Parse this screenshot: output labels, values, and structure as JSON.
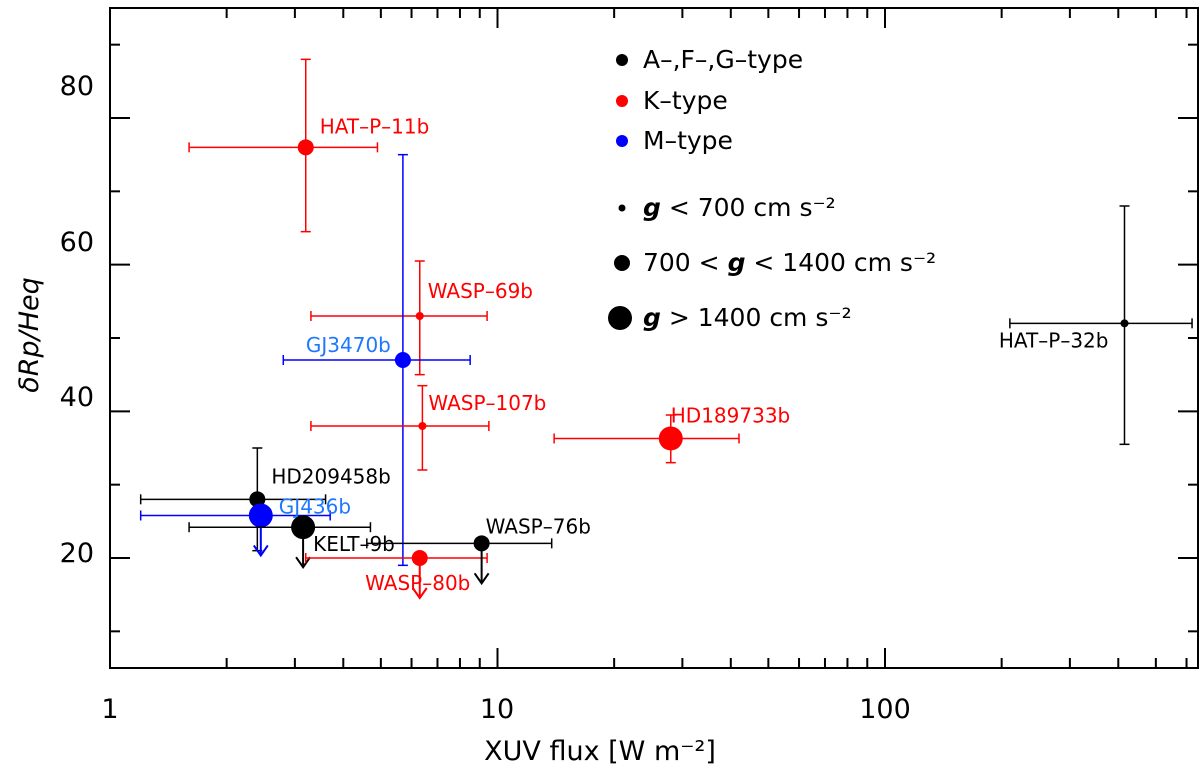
{
  "chart_data": {
    "type": "scatter",
    "xscale": "log",
    "xlim": [
      1,
      600
    ],
    "ylim": [
      5,
      95
    ],
    "xlabel": "XUV flux [W m⁻²]",
    "ylabel": "δRp/Heq",
    "x_ticks": [
      1,
      10,
      100
    ],
    "x_tick_labels": [
      "1",
      "10",
      "100"
    ],
    "y_ticks": [
      20,
      40,
      60,
      80
    ],
    "y_tick_labels": [
      "20",
      "40",
      "60",
      "80"
    ],
    "colors": {
      "AFG": "#000000",
      "K": "#ff0000",
      "M": "#0000ff",
      "M_label": "#1e78ff"
    },
    "legend_types": [
      {
        "label": "A–,F–,G–type",
        "color": "#000000"
      },
      {
        "label": "K–type",
        "color": "#ff0000"
      },
      {
        "label": "M–type",
        "color": "#0000ff"
      }
    ],
    "legend_gravity": [
      {
        "size": "small",
        "pre": "g",
        "text": " < 700 cm s⁻²"
      },
      {
        "size": "medium",
        "pre": "700 < ",
        "g": "g",
        "text": " < 1400 cm s⁻²"
      },
      {
        "size": "large",
        "pre": "g",
        "text": " > 1400 cm s⁻²"
      }
    ],
    "points": [
      {
        "name": "HAT-P-11b",
        "label": "HAT–P–11b",
        "type": "K",
        "x": 3.2,
        "y": 76,
        "x_lo": 1.6,
        "x_hi": 4.9,
        "y_lo": 64.5,
        "y_hi": 88,
        "gclass": "medium",
        "upper_limit": false
      },
      {
        "name": "WASP-69b",
        "label": "WASP–69b",
        "type": "K",
        "x": 6.3,
        "y": 53,
        "x_lo": 3.3,
        "x_hi": 9.4,
        "y_lo": 45,
        "y_hi": 60.5,
        "gclass": "small",
        "upper_limit": false
      },
      {
        "name": "GJ3470b",
        "label": "GJ3470b",
        "type": "M",
        "x": 5.7,
        "y": 47,
        "x_lo": 2.8,
        "x_hi": 8.5,
        "y_lo": 19,
        "y_hi": 75,
        "gclass": "medium",
        "upper_limit": false
      },
      {
        "name": "WASP-107b",
        "label": "WASP–107b",
        "type": "K",
        "x": 6.4,
        "y": 38,
        "x_lo": 3.3,
        "x_hi": 9.5,
        "y_lo": 32,
        "y_hi": 43.5,
        "gclass": "small",
        "upper_limit": false
      },
      {
        "name": "HD189733b",
        "label": "HD189733b",
        "type": "K",
        "x": 28,
        "y": 36.3,
        "x_lo": 14,
        "x_hi": 42,
        "y_lo": 33,
        "y_hi": 39.5,
        "gclass": "large",
        "upper_limit": false
      },
      {
        "name": "HAT-P-32b",
        "label": "HAT–P–32b",
        "type": "AFG",
        "x": 415,
        "y": 52,
        "x_lo": 210,
        "x_hi": 620,
        "y_lo": 35.5,
        "y_hi": 68,
        "gclass": "small",
        "upper_limit": false
      },
      {
        "name": "HD209458b",
        "label": "HD209458b",
        "type": "AFG",
        "x": 2.4,
        "y": 28,
        "x_lo": 1.2,
        "x_hi": 3.6,
        "y_lo": 21,
        "y_hi": 35,
        "gclass": "medium",
        "upper_limit": false
      },
      {
        "name": "GJ436b",
        "label": "GJ436b",
        "type": "M",
        "x": 2.45,
        "y": 25.8,
        "x_lo": 1.2,
        "x_hi": 3.7,
        "y_lo": 25.8,
        "y_hi": 25.8,
        "gclass": "large",
        "upper_limit": true
      },
      {
        "name": "KELT-9b",
        "label": "KELT–9b",
        "type": "AFG",
        "x": 3.15,
        "y": 24.2,
        "x_lo": 1.6,
        "x_hi": 4.7,
        "y_lo": 24.2,
        "y_hi": 24.2,
        "gclass": "large",
        "upper_limit": true
      },
      {
        "name": "WASP-80b",
        "label": "WASP–80b",
        "type": "K",
        "x": 6.3,
        "y": 20,
        "x_lo": 3.2,
        "x_hi": 9.4,
        "y_lo": 20,
        "y_hi": 20,
        "gclass": "medium",
        "upper_limit": true
      },
      {
        "name": "WASP-76b",
        "label": "WASP–76b",
        "type": "AFG",
        "x": 9.1,
        "y": 22,
        "x_lo": 4.6,
        "x_hi": 13.8,
        "y_lo": 22,
        "y_hi": 22,
        "gclass": "medium",
        "upper_limit": true
      }
    ]
  }
}
